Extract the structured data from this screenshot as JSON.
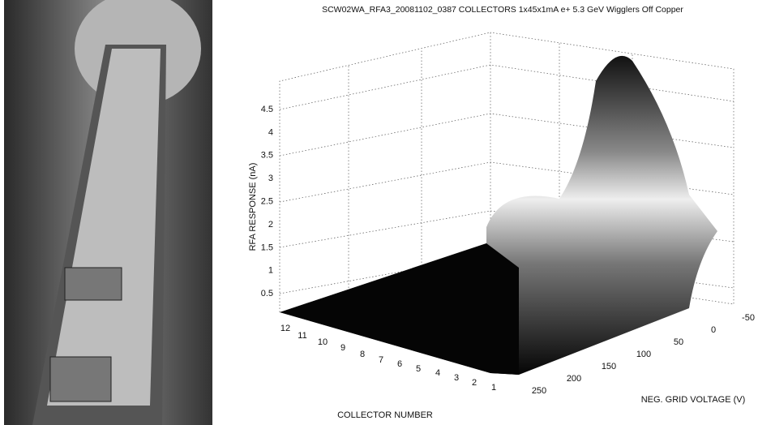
{
  "figure": {
    "title": "SCW02WA_RFA3_20081102_0387     COLLECTORS     1x45x1mA e+ 5.3 GeV Wigglers Off     Copper",
    "z_axis_label": "RFA RESPONSE (nA)",
    "z_ticks": [
      "4.5",
      "4",
      "3.5",
      "3",
      "2.5",
      "2",
      "1.5",
      "1",
      "0.5"
    ],
    "x_axis_label": "COLLECTOR NUMBER",
    "x_ticks": [
      "12",
      "11",
      "10",
      "9",
      "8",
      "7",
      "6",
      "5",
      "4",
      "3",
      "2",
      "1"
    ],
    "y_axis_label": "NEG. GRID VOLTAGE (V)",
    "y_ticks": [
      "250",
      "200",
      "150",
      "100",
      "50",
      "0",
      "-50"
    ]
  }
}
